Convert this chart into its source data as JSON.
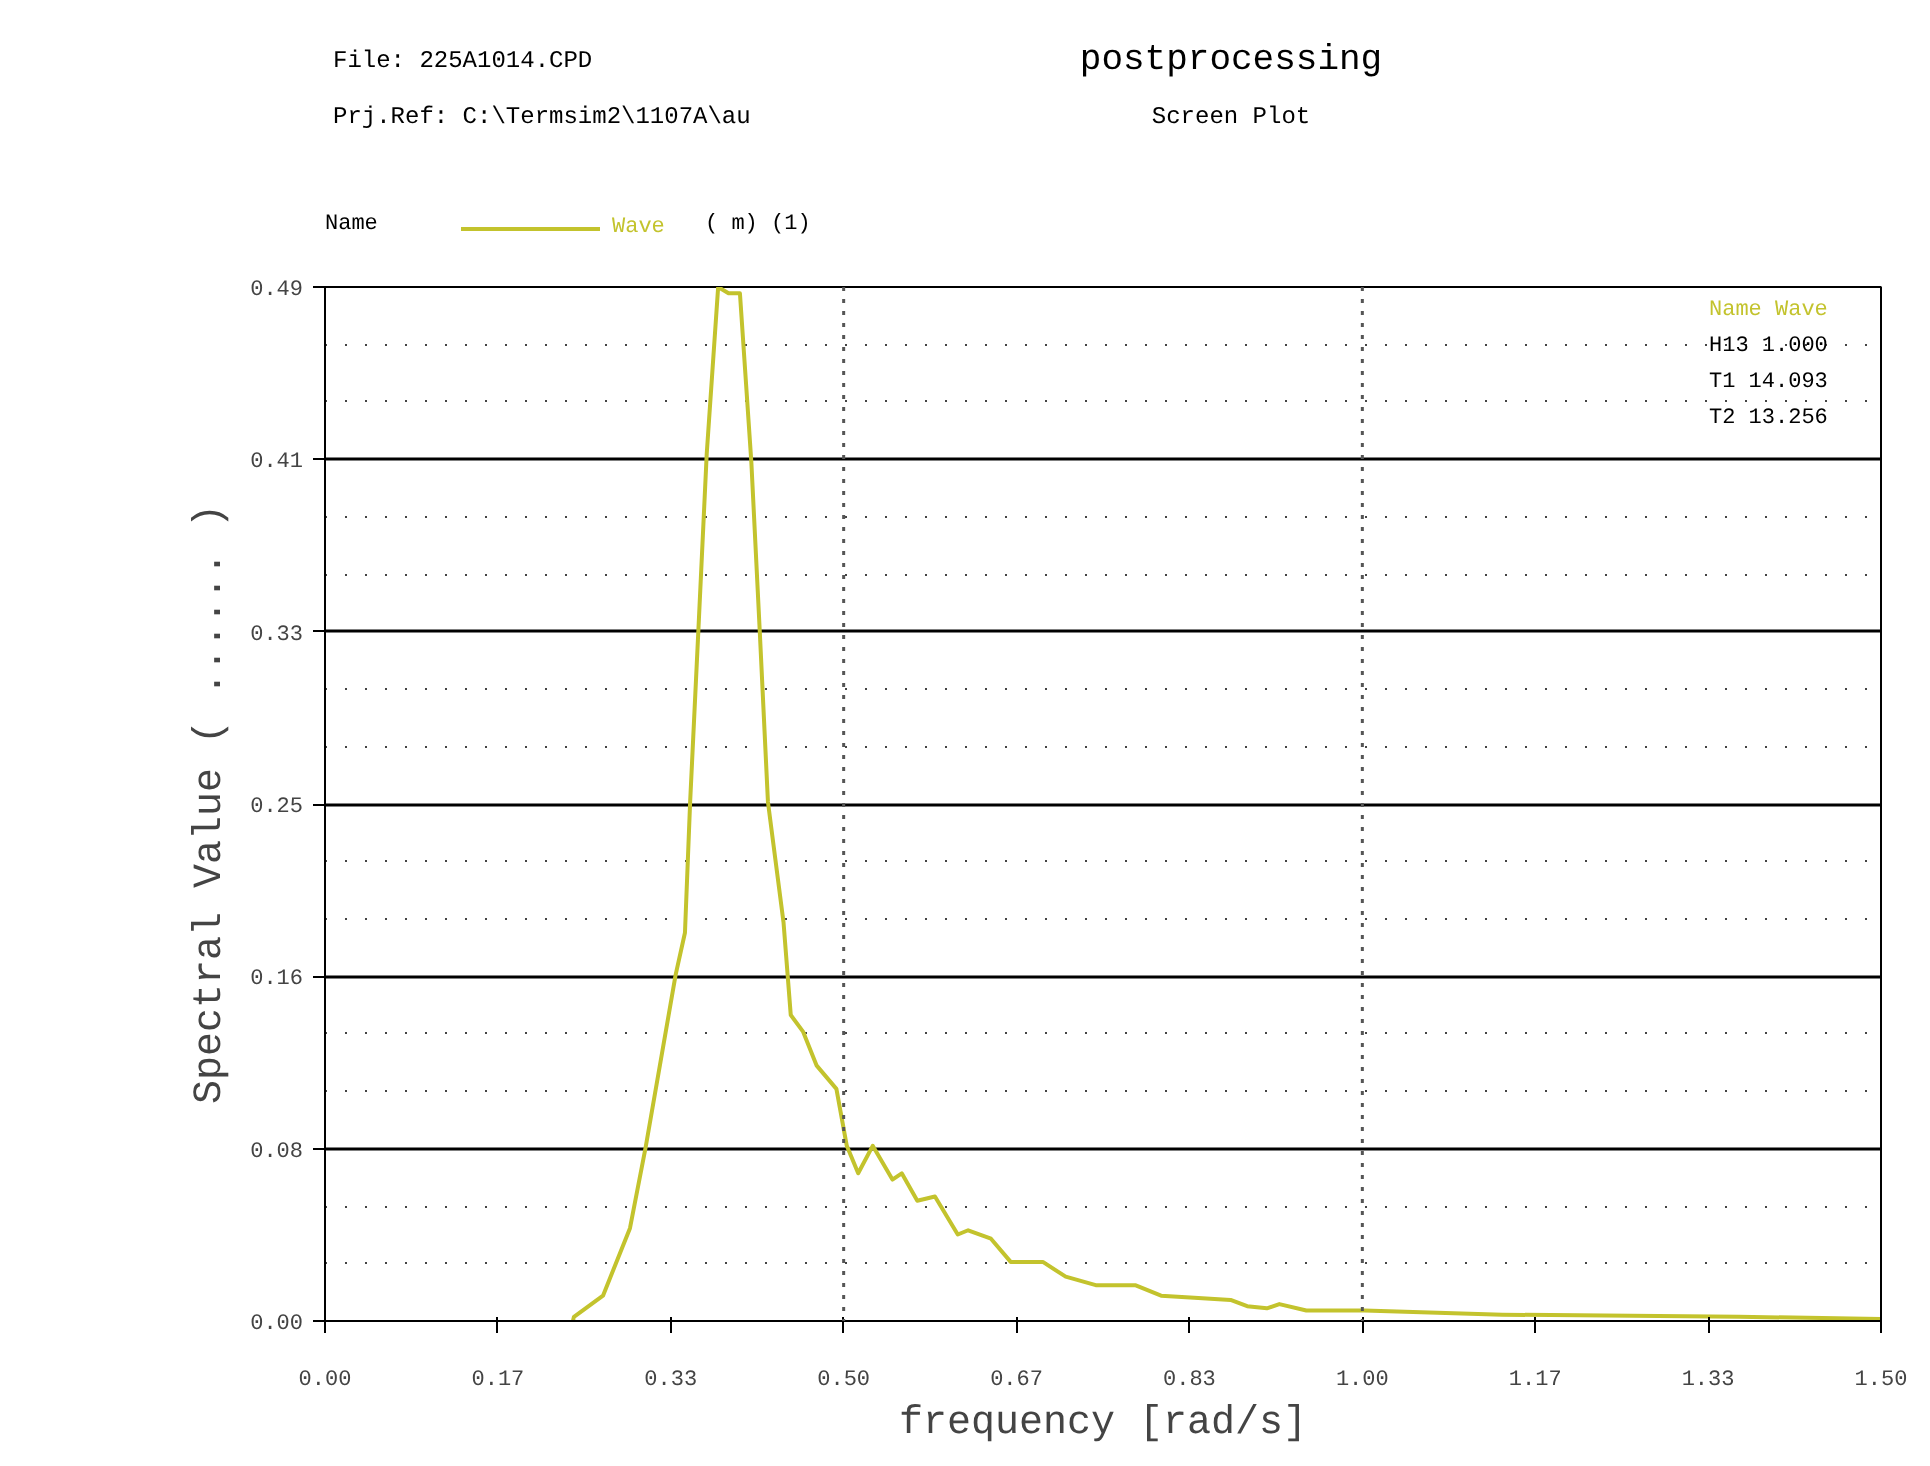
{
  "chart_data": {
    "type": "line",
    "title": "postprocessing",
    "subtitle": "Screen Plot",
    "xlabel": "frequency [rad/s]",
    "ylabel": "Spectral Value ( ...... )",
    "legend_title": "Name",
    "legend": "top",
    "annotations": [
      "File: 225A1014.CPD",
      "Prj.Ref: C:\\Termsim2\\1107A\\au",
      "( m) (1)",
      "Name  Wave",
      "H13   1.000",
      "T1   14.093",
      "T2   13.256"
    ],
    "xlim": [
      0,
      1.5
    ],
    "ylim": [
      0,
      0.49
    ],
    "xticks": [
      {
        "value": 0,
        "label": "0.00"
      },
      {
        "value": 0.1667,
        "label": "0.17"
      },
      {
        "value": 0.3333,
        "label": "0.33"
      },
      {
        "value": 0.5,
        "label": "0.50"
      },
      {
        "value": 0.6667,
        "label": "0.67"
      },
      {
        "value": 0.8333,
        "label": "0.83"
      },
      {
        "value": 1.0,
        "label": "1.00"
      },
      {
        "value": 1.1667,
        "label": "1.17"
      },
      {
        "value": 1.3333,
        "label": "1.33"
      },
      {
        "value": 1.5,
        "label": "1.50"
      }
    ],
    "yticks": [
      {
        "value": 0,
        "label": "0.00"
      },
      {
        "value": 0.0817,
        "label": "0.08"
      },
      {
        "value": 0.1633,
        "label": "0.16"
      },
      {
        "value": 0.245,
        "label": "0.25"
      },
      {
        "value": 0.3267,
        "label": "0.33"
      },
      {
        "value": 0.4083,
        "label": "0.41"
      },
      {
        "value": 0.49,
        "label": "0.49"
      }
    ],
    "grid": "y",
    "line_style": "solid",
    "ref_lines": [
      {
        "axis": "x",
        "value": 0.5,
        "line_style": "dotted",
        "color": "#555555"
      },
      {
        "axis": "x",
        "value": 1.0,
        "line_style": "dotted",
        "color": "#555555"
      }
    ],
    "series": [
      {
        "name": "Wave",
        "color": "#c3c32d",
        "x": [
          0.239,
          0.24,
          0.268,
          0.294,
          0.309,
          0.338,
          0.347,
          0.352,
          0.36,
          0.368,
          0.379,
          0.389,
          0.4,
          0.411,
          0.419,
          0.427,
          0.442,
          0.449,
          0.461,
          0.474,
          0.493,
          0.503,
          0.514,
          0.528,
          0.547,
          0.556,
          0.571,
          0.588,
          0.61,
          0.62,
          0.642,
          0.661,
          0.673,
          0.692,
          0.714,
          0.743,
          0.781,
          0.806,
          0.838,
          0.873,
          0.889,
          0.908,
          0.92,
          0.946,
          1.002,
          1.135,
          1.363,
          1.5
        ],
        "values": [
          0.0,
          0.002,
          0.012,
          0.044,
          0.082,
          0.164,
          0.184,
          0.246,
          0.328,
          0.411,
          0.49,
          0.487,
          0.487,
          0.407,
          0.328,
          0.246,
          0.189,
          0.145,
          0.137,
          0.121,
          0.11,
          0.083,
          0.07,
          0.083,
          0.067,
          0.07,
          0.057,
          0.059,
          0.041,
          0.043,
          0.039,
          0.028,
          0.028,
          0.028,
          0.021,
          0.017,
          0.017,
          0.012,
          0.011,
          0.01,
          0.007,
          0.006,
          0.008,
          0.005,
          0.005,
          0.003,
          0.002,
          0.001
        ]
      }
    ]
  }
}
